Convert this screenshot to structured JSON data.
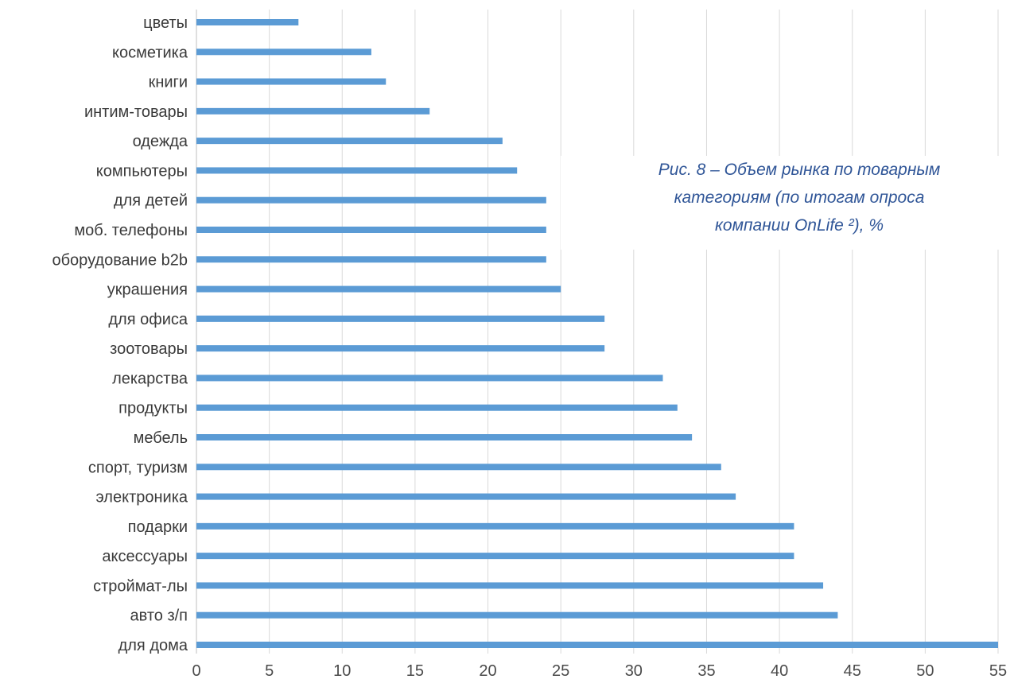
{
  "chart_data": {
    "type": "bar",
    "orientation": "horizontal",
    "categories": [
      "цветы",
      "косметика",
      "книги",
      "интим-товары",
      "одежда",
      "компьютеры",
      "для детей",
      "моб. телефоны",
      "оборудование b2b",
      "украшения",
      "для офиса",
      "зоотовары",
      "лекарства",
      "продукты",
      "мебель",
      "спорт, туризм",
      "электроника",
      "подарки",
      "аксессуары",
      "строймат-лы",
      "авто з/п",
      "для дома"
    ],
    "values": [
      7,
      12,
      13,
      16,
      21,
      22,
      24,
      24,
      24,
      25,
      28,
      28,
      32,
      33,
      34,
      36,
      37,
      41,
      41,
      43,
      44,
      55
    ],
    "xlim": [
      0,
      55
    ],
    "xticks": [
      "0",
      "5",
      "10",
      "15",
      "20",
      "25",
      "30",
      "35",
      "40",
      "45",
      "50",
      "55"
    ],
    "grid": "vertical",
    "bar_color": "#5b9bd5",
    "title_color": "#2f5597",
    "title_lines": [
      "Рис. 8 – Объем рынка по товарным",
      "категориям (по итогам опроса",
      "компании OnLife ²), %"
    ]
  }
}
